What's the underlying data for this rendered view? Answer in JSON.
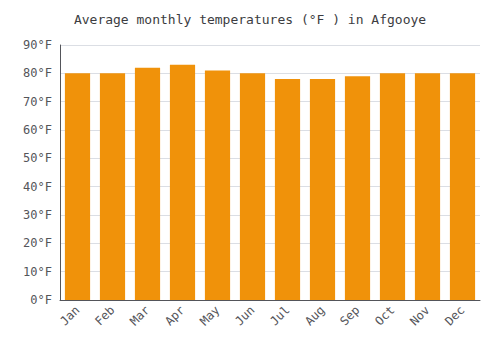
{
  "chart_data": {
    "type": "bar",
    "title": "Average monthly temperatures (°F ) in Afgooye",
    "categories": [
      "Jan",
      "Feb",
      "Mar",
      "Apr",
      "May",
      "Jun",
      "Jul",
      "Aug",
      "Sep",
      "Oct",
      "Nov",
      "Dec"
    ],
    "values": [
      80,
      80,
      82,
      83,
      81,
      80,
      78,
      78,
      79,
      80,
      80,
      80
    ],
    "color": "#F0920A",
    "ylim": [
      0,
      90
    ],
    "yticks": [
      {
        "value": 0,
        "label": "0°F"
      },
      {
        "value": 10,
        "label": "10°F"
      },
      {
        "value": 20,
        "label": "20°F"
      },
      {
        "value": 30,
        "label": "30°F"
      },
      {
        "value": 40,
        "label": "40°F"
      },
      {
        "value": 50,
        "label": "50°F"
      },
      {
        "value": 60,
        "label": "60°F"
      },
      {
        "value": 70,
        "label": "70°F"
      },
      {
        "value": 80,
        "label": "80°F"
      },
      {
        "value": 90,
        "label": "90°F"
      }
    ],
    "grid": true
  }
}
